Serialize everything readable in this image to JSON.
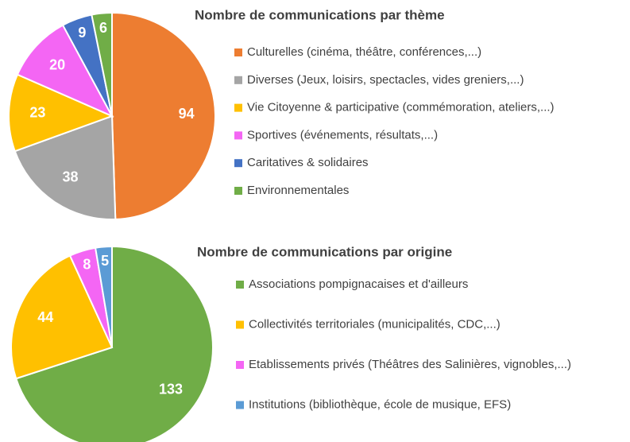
{
  "chart_data": [
    {
      "type": "pie",
      "title": "Nombre de communications par thème",
      "categories": [
        "Culturelles (cinéma, théâtre, conférences,...)",
        "Diverses  (Jeux, loisirs, spectacles, vides greniers,...)",
        "Vie Citoyenne & participative (commémoration, ateliers,...)",
        "Sportives (événements, résultats,...)",
        "Caritatives & solidaires",
        "Environnementales"
      ],
      "values": [
        94,
        38,
        23,
        20,
        9,
        6
      ],
      "colors": [
        "#ed7d31",
        "#a5a5a5",
        "#ffc000",
        "#f466f4",
        "#4472c4",
        "#70ad47"
      ]
    },
    {
      "type": "pie",
      "title": "Nombre de communications par origine",
      "categories": [
        "Associations pompignacaises et d'ailleurs",
        "Collectivités territoriales (municipalités, CDC,...)",
        "Etablissements privés (Théâtres des Salinières, vignobles,...)",
        "Institutions (bibliothèque, école de musique, EFS)"
      ],
      "values": [
        133,
        44,
        8,
        5
      ],
      "colors": [
        "#70ad47",
        "#ffc000",
        "#f466f4",
        "#5b9bd5"
      ]
    }
  ]
}
